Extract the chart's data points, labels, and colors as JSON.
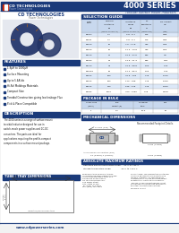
{
  "title_series": "4000 SERIES",
  "subtitle": "Toroidal Surface Mount Inductors",
  "company": "CD TECHNOLOGIES",
  "tagline": "Power Technologies",
  "bg_color": "#f0f0f0",
  "header_color": "#1a3a7a",
  "section_bg": "#c8d8ee",
  "blue_bar_color": "#1a3a7a",
  "text_dark": "#111111",
  "text_gray": "#444444",
  "features": [
    "1.8μH to 1000μH",
    "Surface Mounting",
    "Up to 5.4A Idc",
    "Hi-Rel Moldings Materials",
    "Compact Size",
    "Toroidal Construction giving low leakage Flux",
    "Pick & Place Compatible"
  ],
  "description": "The 4000-series is a range of surface mount\ntoroidal inductor designed for use in\nswitch-mode power supplies and DC-DC\nconverters. The parts are ideal for\napplications requiring the profile-compact\ncomponents in a surface mount package.",
  "sel_rows": [
    [
      "404R7",
      "4.7",
      "3.8 - 5.7",
      "175",
      "4.80"
    ],
    [
      "40681",
      "4.7",
      "3.8 - 5.7",
      "175",
      "4.80"
    ],
    [
      "40100",
      "10",
      "7.5 - 11.8",
      "375",
      "4.65"
    ],
    [
      "40150",
      "15",
      "11.3 - 13.8",
      "375",
      "4.60"
    ],
    [
      "40220",
      "22",
      "16.6 - 27.5",
      "875",
      "3.5"
    ],
    [
      "40330",
      "33",
      "24.9 - 41.3",
      "875",
      "3.54"
    ],
    [
      "40470",
      "47",
      "35.5 - 58.8",
      "1.60",
      "3.00"
    ],
    [
      "40681R",
      "68",
      "51.3 - 85.0",
      "1.60",
      "3.00"
    ],
    [
      "40102",
      "100",
      "75.5 - 126",
      "3.75",
      "2.275"
    ],
    [
      "40152",
      "150",
      "113 - 188",
      "3.75",
      "2.375"
    ],
    [
      "40222",
      "220",
      "165 - 275",
      "3.75",
      "1.875"
    ],
    [
      "40332",
      "1000",
      "750 - 1250",
      "4.25",
      "0.578"
    ]
  ],
  "sel_col_headers": [
    "Order Code",
    "Nominal\nInductance\nμH\n(10kHz,\n100mV AC)",
    "Inductance\nRange\nμH\n(10kHz,\n100mV AC)",
    "DC\nResistance\nΩ\n(ohms\nmax)",
    "DC Current\nmA\n(max)"
  ],
  "pkg_row": [
    "-1",
    "1.2",
    "10.0",
    "25"
  ],
  "pkg_cols": [
    "Order Code\n(suffix)",
    "ESD\nWeight (g)",
    "Packaging\nStyle",
    "NPS"
  ],
  "website": "www.cdpowerseries.com",
  "abs_ratings": [
    "Operating free air temperature range:   -40°C to +85°C",
    "Storage temperature range:              -40°C to +125°C"
  ]
}
